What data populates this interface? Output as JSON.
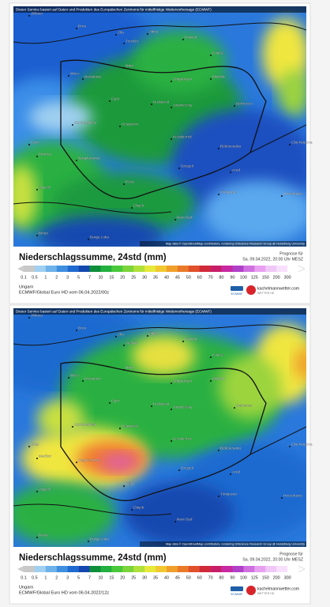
{
  "panels": [
    {
      "disclaimer": "Dieser Service basiert auf Daten und Produkten des Europäischen Zentrums für mittelfristige Wettervorhersage (ECMWF)",
      "cities": [
        "Jihlava",
        "Brno",
        "Zlín",
        "Trenčín",
        "Žilina",
        "Poprad",
        "Košice",
        "Wien",
        "Bratislava",
        "Nitra",
        "Salgótarján",
        "Miskolc",
        "Győr",
        "Budapest",
        "Jászberény",
        "Debrecen",
        "Szombathely",
        "Veszprém",
        "Kecskemét",
        "Graz",
        "Békéscsaba",
        "Cluj-Napoca",
        "Maribor",
        "Nagykanizsa",
        "Szeged",
        "Pécs",
        "Zagreb",
        "Arad",
        "Timișoara",
        "Osijek",
        "Novi Sad",
        "Banja Luka",
        "Bihać",
        "Hunedoara"
      ],
      "attribution": "Map data © OpenStreetMap contributors, rendering GIScience Research Group @ Heidelberg University",
      "title": "Niederschlagssumme, 24std (mm)",
      "forecast_label": "Prognose für",
      "forecast_time": "Sa. 09.04.2022, 20:00 Uhr MESZ",
      "scale": [
        "0.1",
        "0.5",
        "1",
        "2",
        "3",
        "5",
        "7",
        "10",
        "15",
        "20",
        "25",
        "30",
        "35",
        "40",
        "45",
        "50",
        "60",
        "70",
        "80",
        "90",
        "100",
        "125",
        "150",
        "200",
        "300"
      ],
      "region": "Ungarn",
      "model_run": "ECMWF/Global Euro HD vom 06.04.2022/00z",
      "ecmwf_logo": "ECMWF",
      "logo_name": "kachelmannwetter.com",
      "logo_sub": "WETTER HD"
    },
    {
      "disclaimer": "Dieser Service basiert auf Daten und Produkten des Europäischen Zentrums für mittelfristige Wettervorhersage (ECMWF)",
      "cities": [
        "Jihlava",
        "Brno",
        "Zlín",
        "Trenčín",
        "Žilina",
        "Poprad",
        "Košice",
        "Wien",
        "Bratislava",
        "Nitra",
        "Salgótarján",
        "Miskolc",
        "Győr",
        "Budapest",
        "Jászberény",
        "Debrecen",
        "Szombathely",
        "Veszprém",
        "Kecskemét",
        "Graz",
        "Békéscsaba",
        "Cluj-Napoca",
        "Maribor",
        "Nagykanizsa",
        "Szeged",
        "Pécs",
        "Zagreb",
        "Arad",
        "Timișoara",
        "Osijek",
        "Novi Sad",
        "Banja Luka",
        "Bihać",
        "Hunedoara"
      ],
      "attribution": "Map data © OpenStreetMap contributors, rendering GIScience Research Group @ Heidelberg University",
      "title": "Niederschlagssumme, 24std (mm)",
      "forecast_label": "Prognose für",
      "forecast_time": "Sa. 09.04.2022, 20:00 Uhr MESZ",
      "scale": [
        "0.1",
        "0.5",
        "1",
        "2",
        "3",
        "5",
        "7",
        "10",
        "15",
        "20",
        "25",
        "30",
        "35",
        "40",
        "45",
        "50",
        "60",
        "70",
        "80",
        "90",
        "100",
        "125",
        "150",
        "200",
        "300"
      ],
      "region": "Ungarn",
      "model_run": "ECMWF/Global Euro HD vom 06.04.2022/12z",
      "ecmwf_logo": "ECMWF",
      "logo_name": "kachelmannwetter.com",
      "logo_sub": "WETTER HD"
    }
  ]
}
